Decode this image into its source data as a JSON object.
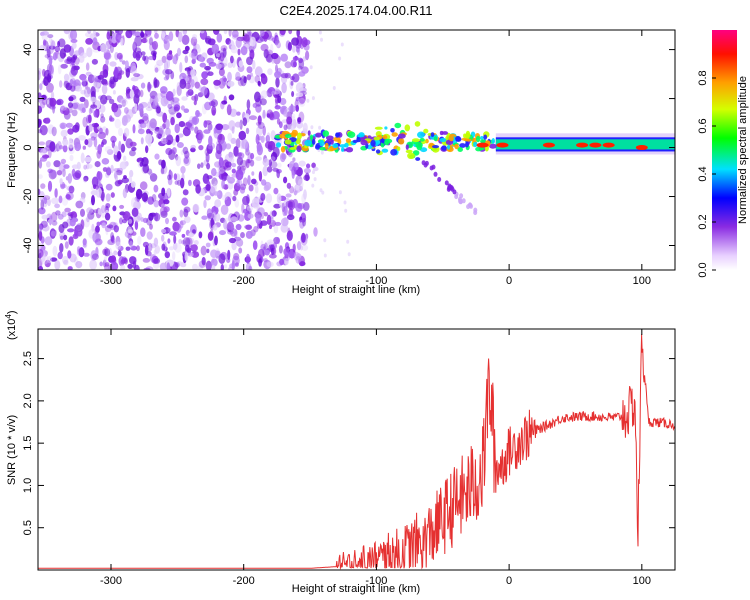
{
  "title": "C2E4.2025.174.04.00.R11",
  "chart_data": [
    {
      "type": "heatmap",
      "xlabel": "Height of straight line (km)",
      "ylabel": "Frequency (Hz)",
      "xlim": [
        -355,
        125
      ],
      "ylim": [
        -50,
        48
      ],
      "xticks": [
        -300,
        -200,
        -100,
        0,
        100
      ],
      "yticks": [
        -40,
        -20,
        0,
        20,
        40
      ],
      "colorbar": {
        "label": "Normalized spectral amplitude",
        "ticks": [
          0.0,
          0.2,
          0.4,
          0.6,
          0.8
        ],
        "range": [
          0,
          1
        ]
      },
      "regions": [
        {
          "name": "noise",
          "x": [
            -355,
            -152
          ],
          "y": [
            -50,
            48
          ],
          "amplitude": 0.15
        },
        {
          "name": "signal-band",
          "x": [
            -175,
            125
          ],
          "y": [
            -2,
            5
          ],
          "amplitude": 0.5
        },
        {
          "name": "trail",
          "x": [
            -65,
            -25
          ],
          "y": [
            -27,
            -5
          ],
          "amplitude": 0.15
        }
      ]
    },
    {
      "type": "line",
      "xlabel": "Height of straight line (km)",
      "ylabel": "SNR (10 * v/v)",
      "multiplier": "(x10",
      "multiplier_exp": "4",
      "multiplier_close": ")",
      "xlim": [
        -355,
        125
      ],
      "ylim": [
        0,
        2.85
      ],
      "xticks": [
        -300,
        -200,
        -100,
        0,
        100
      ],
      "yticks": [
        0.5,
        1.0,
        1.5,
        2.0,
        2.5
      ],
      "ytick_labels": [
        "0.5",
        "1.0",
        "1.5",
        "2.0",
        "2.5"
      ],
      "color": "#e53030",
      "x": [
        -355,
        -150,
        -120,
        -100,
        -80,
        -60,
        -45,
        -30,
        -20,
        -15,
        -10,
        -5,
        0,
        10,
        20,
        30,
        40,
        60,
        80,
        90,
        95,
        97,
        100,
        105,
        110,
        125
      ],
      "y": [
        0.02,
        0.02,
        0.05,
        0.1,
        0.2,
        0.4,
        0.7,
        0.95,
        1.15,
        2.2,
        1.2,
        1.25,
        1.4,
        1.55,
        1.65,
        1.72,
        1.8,
        1.82,
        1.8,
        1.85,
        2.0,
        0.35,
        2.75,
        1.75,
        1.75,
        1.72
      ]
    }
  ]
}
